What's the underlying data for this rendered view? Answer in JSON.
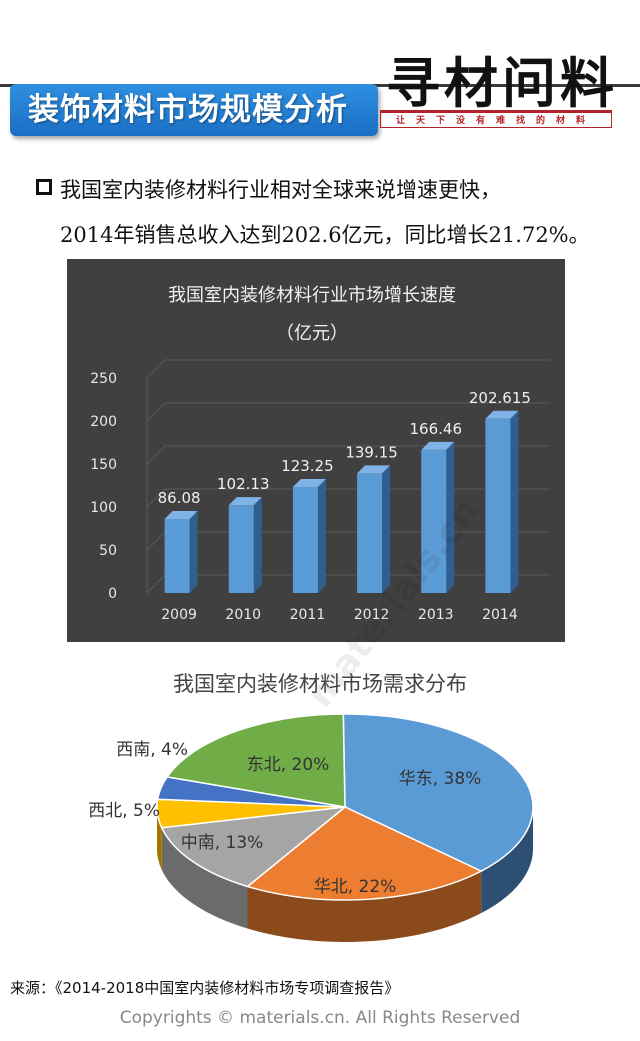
{
  "header": {
    "title": "装饰材料市场规模分析",
    "logo_main": "寻材问料",
    "logo_sub": "让天下没有难找的材料"
  },
  "bullet": {
    "line1": "我国室内装修材料行业相对全球来说增速更快，",
    "line2": "2014年销售总收入达到202.6亿元，同比增长21.72%。"
  },
  "colors": {
    "bar": "#5b9bd5",
    "panel": "#404040",
    "banner": "#1a6fc4"
  },
  "chart_data": [
    {
      "type": "bar",
      "title": "我国室内装修材料行业市场增长速度",
      "subtitle": "（亿元）",
      "categories": [
        "2009",
        "2010",
        "2011",
        "2012",
        "2013",
        "2014"
      ],
      "values": [
        86.08,
        102.13,
        123.25,
        139.15,
        166.46,
        202.615
      ],
      "data_labels": [
        "86.08",
        "102.13",
        "123.25",
        "139.15",
        "166.46",
        "202.615"
      ],
      "yticks": [
        "0",
        "50",
        "100",
        "150",
        "200",
        "250"
      ],
      "ylim": [
        0,
        250
      ],
      "grid": true,
      "legend": "none"
    },
    {
      "type": "pie",
      "title": "我国室内装修材料市场需求分布",
      "slices": [
        {
          "label": "华东, 38%",
          "value": 38,
          "color": "#5b9bd5",
          "side": "#2c4f73"
        },
        {
          "label": "华北, 22%",
          "value": 22,
          "color": "#ed7d31",
          "side": "#8a4a1c"
        },
        {
          "label": "中南, 13%",
          "value": 13,
          "color": "#a5a5a5",
          "side": "#6b6b6b"
        },
        {
          "label": "西北, 5%",
          "value": 5,
          "color": "#ffc000",
          "side": "#a07800"
        },
        {
          "label": "西南, 4%",
          "value": 4,
          "color": "#4472c4",
          "side": "#2a4780"
        },
        {
          "label": "东北, 20%",
          "value": 20,
          "color": "#70ad47",
          "side": "#456b2c"
        }
      ]
    }
  ],
  "watermark": "materials.cn",
  "footer": {
    "source": "来源：《2014-2018中国室内装修材料市场专项调查报告》",
    "copyright": "Copyrights © materials.cn. All Rights Reserved"
  }
}
